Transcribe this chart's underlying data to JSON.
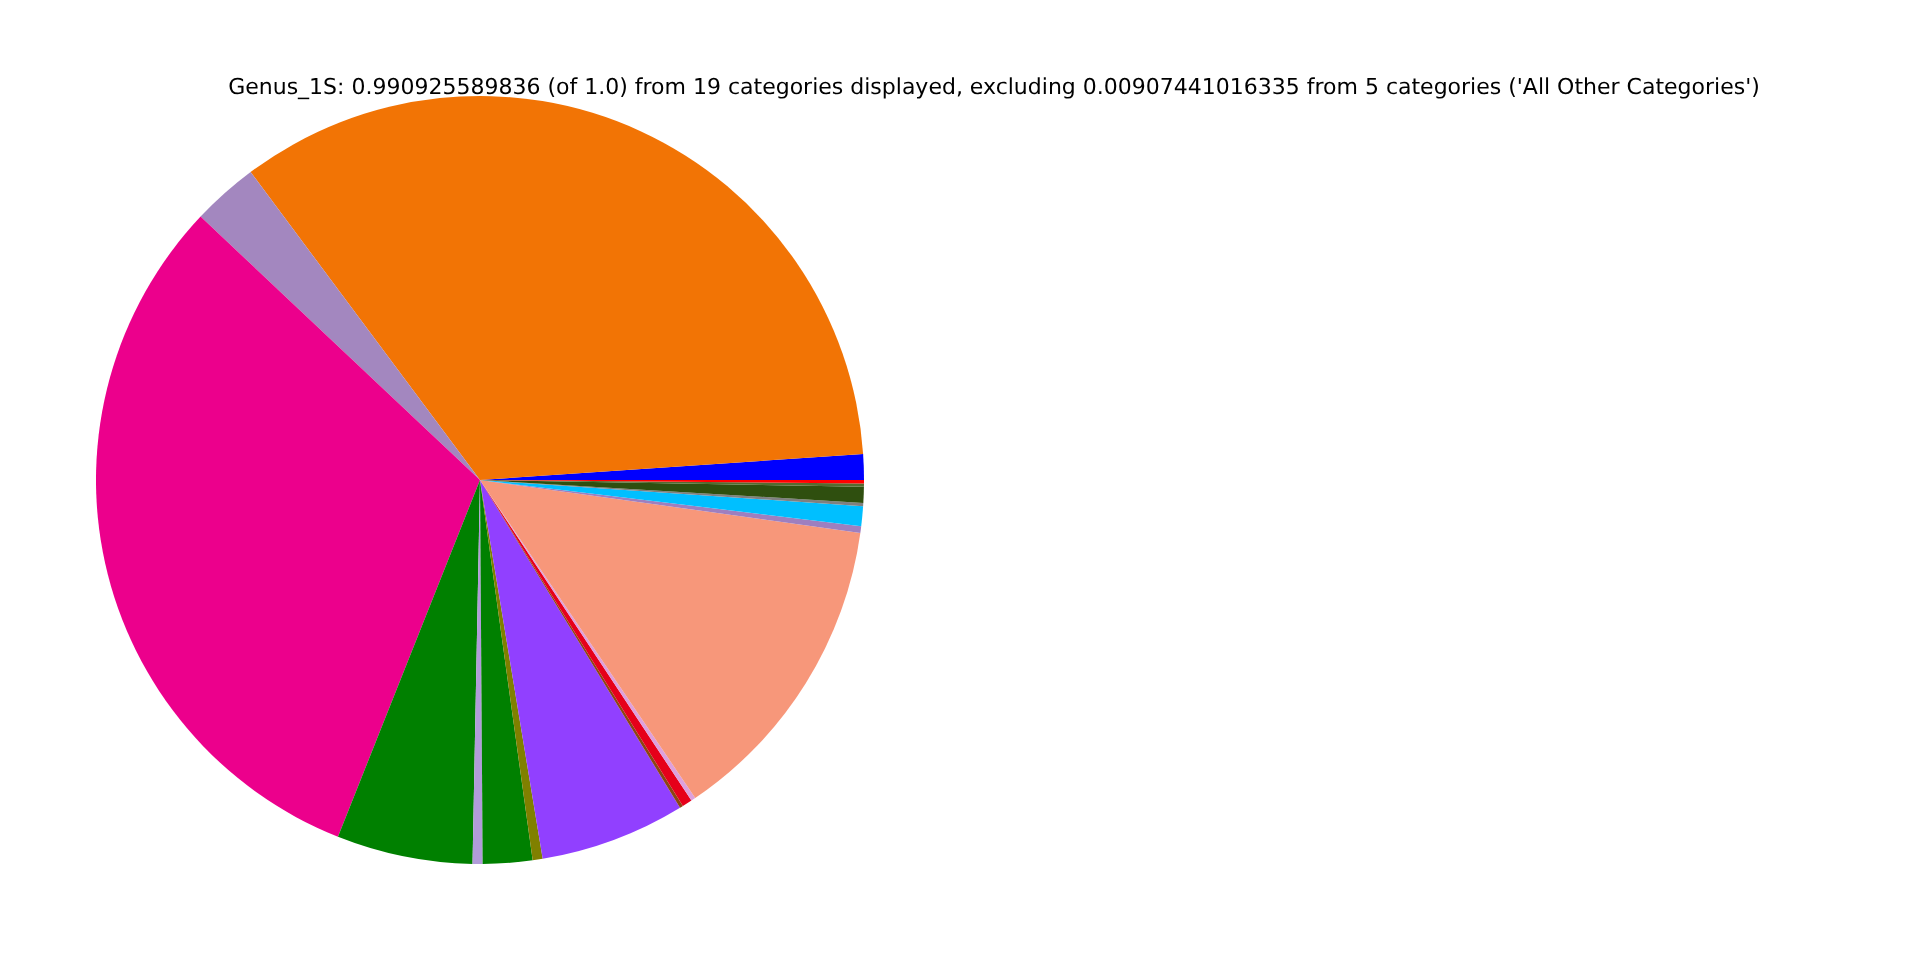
{
  "chart_data": {
    "type": "pie",
    "title": "Genus_1S: 0.990925589836 (of 1.0) from 19 categories displayed, excluding 0.00907441016335 from 5 categories ('All Other Categories')",
    "categories": [
      null,
      null,
      null,
      null,
      null,
      null,
      null,
      null,
      null,
      null,
      null,
      null,
      null,
      null,
      null,
      null,
      null,
      null,
      null
    ],
    "values": [
      1.08,
      34.11,
      2.78,
      31.0,
      5.72,
      0.42,
      2.08,
      0.42,
      6.11,
      0.14,
      0.42,
      0.19,
      13.33,
      0.28,
      0.83,
      0.14,
      0.67,
      0.14,
      0.14
    ],
    "colors": [
      "#0000ff",
      "#f27405",
      "#a387bf",
      "#ec008c",
      "#008000",
      "#b19cd9",
      "#008000",
      "#808000",
      "#9140ff",
      "#8b4513",
      "#e6001a",
      "#dda0dd",
      "#f7977a",
      "#9e7fbf",
      "#00bfff",
      "#808080",
      "#2f4f0f",
      "#556b2f",
      "#ff0000"
    ]
  }
}
